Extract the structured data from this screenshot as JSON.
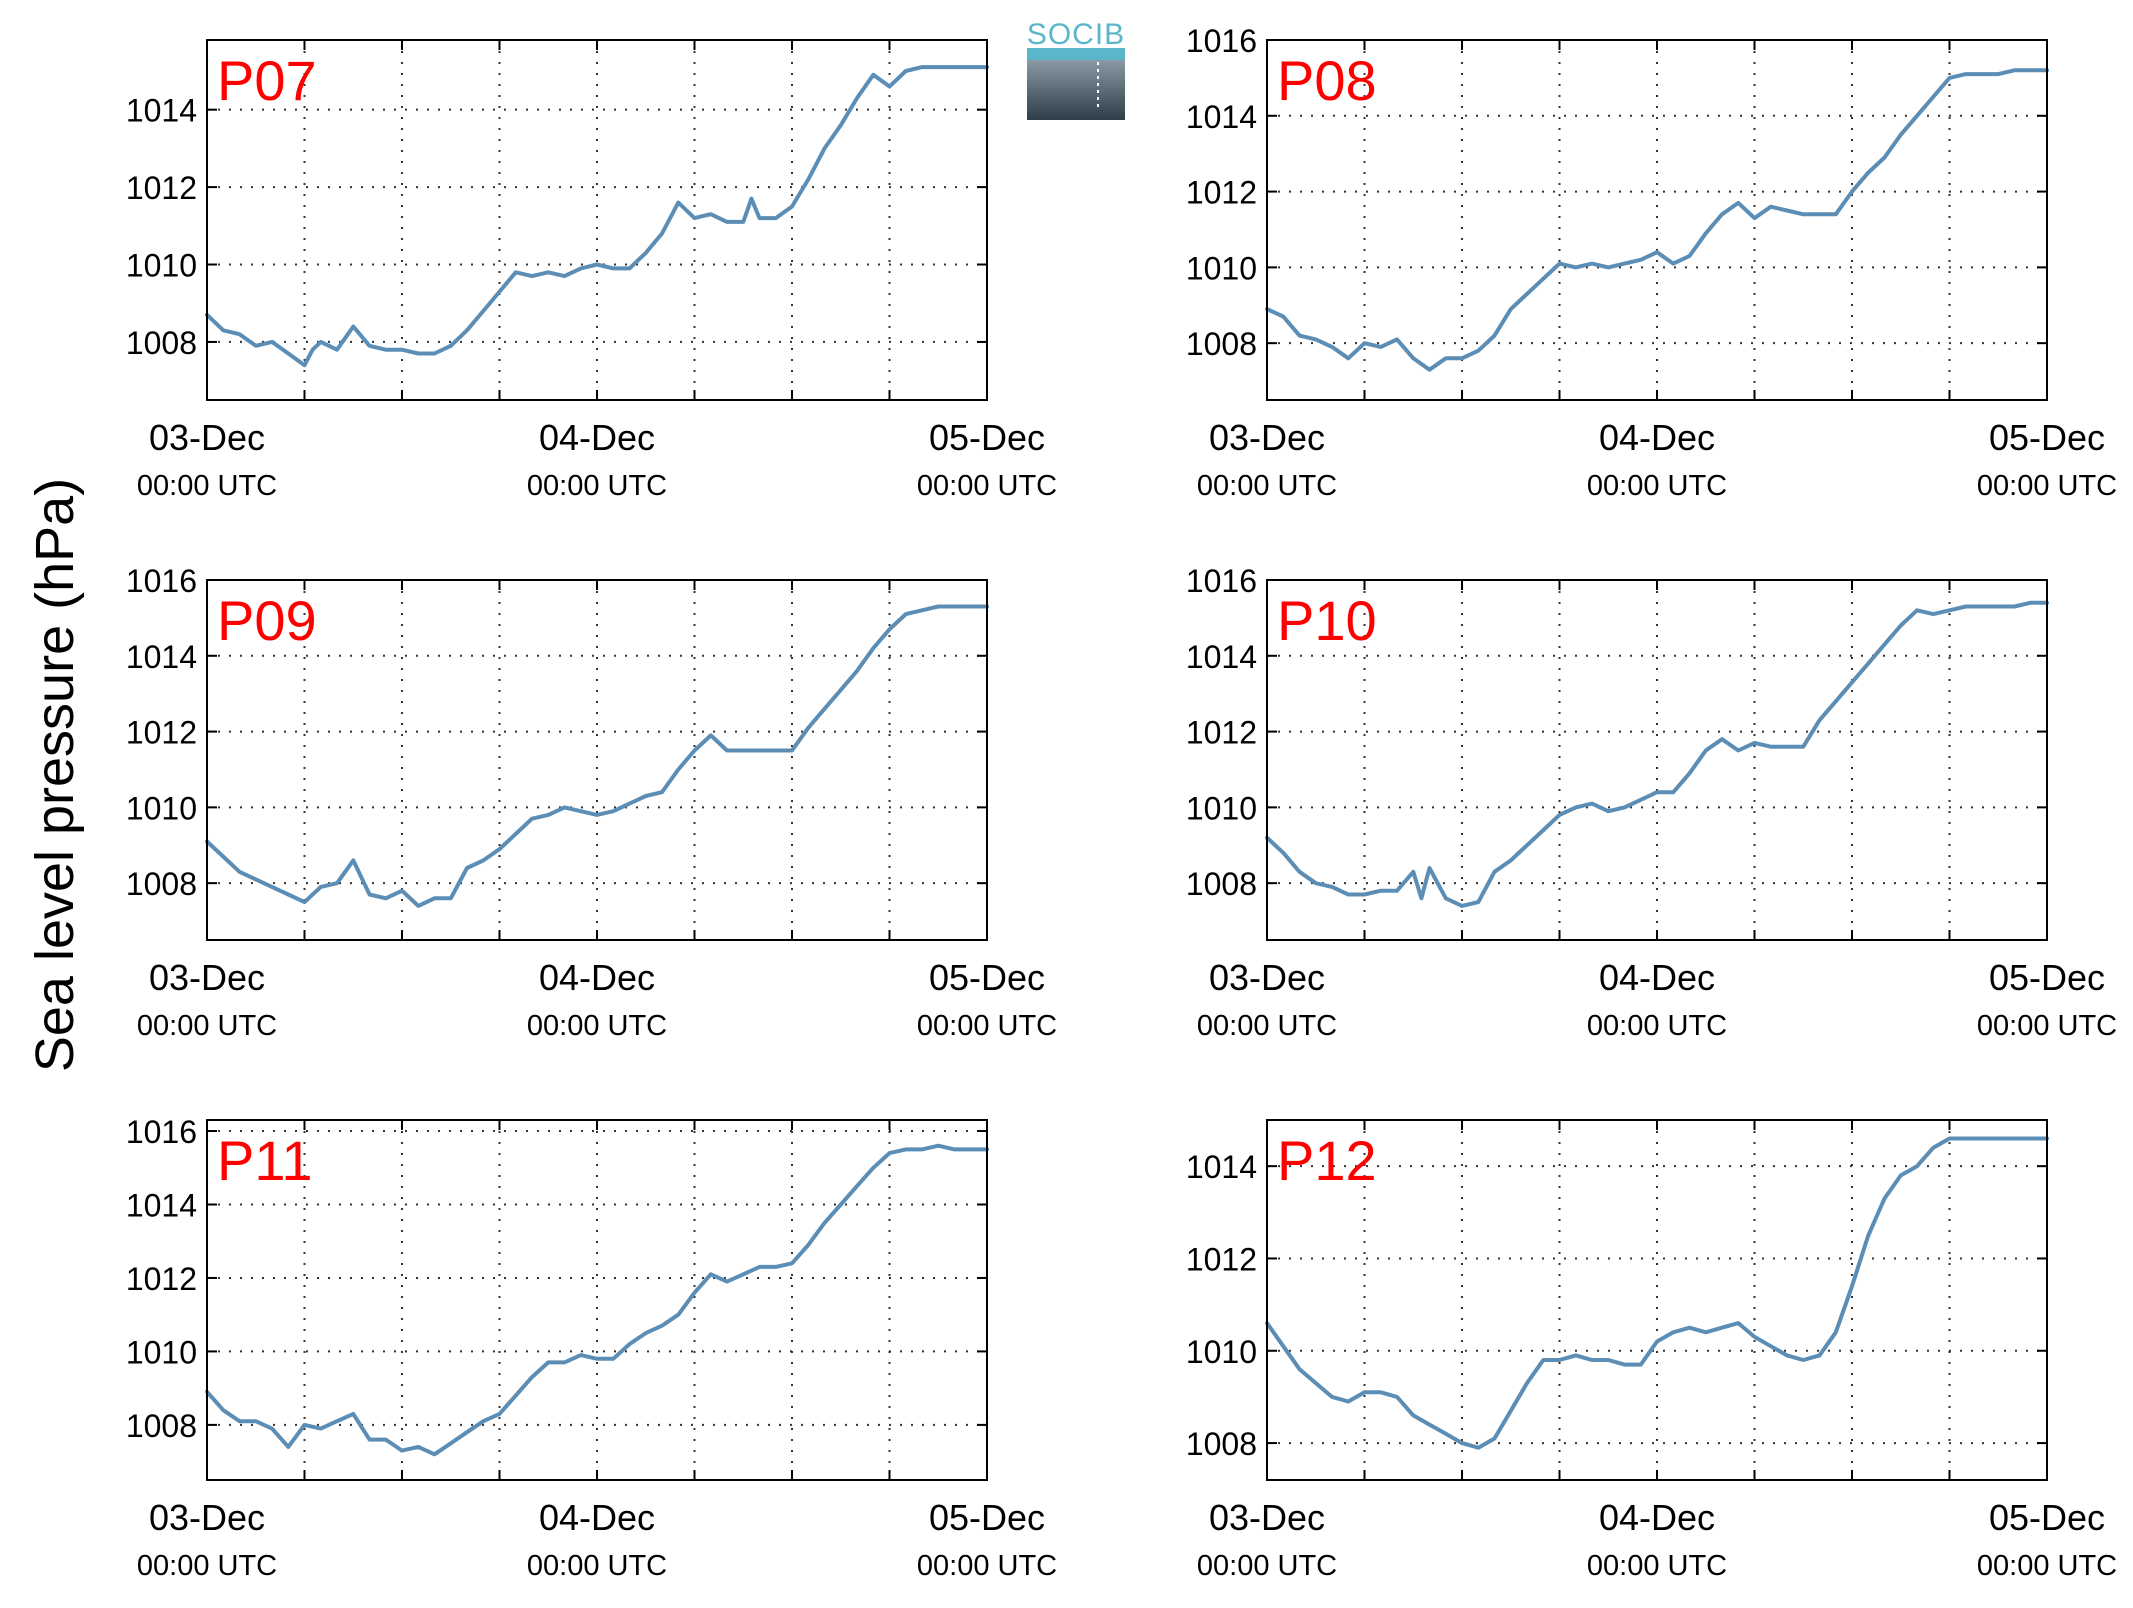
{
  "figure": {
    "ylabel": "Sea level pressure (hPa)",
    "logo": {
      "text": "SOCIB"
    },
    "colors": {
      "series": "#5b8db5",
      "panel_label": "#ff0000",
      "grid": "#333333"
    }
  },
  "chart_data": [
    {
      "type": "line",
      "title": "P07",
      "x_ticks": [
        {
          "date": "03-Dec",
          "time": "00:00 UTC"
        },
        {
          "date": "04-Dec",
          "time": "00:00 UTC"
        },
        {
          "date": "05-Dec",
          "time": "00:00 UTC"
        }
      ],
      "xlim_hours": [
        0,
        48
      ],
      "ylim": [
        1006.5,
        1015.8
      ],
      "yticks": [
        1008,
        1010,
        1012,
        1014
      ],
      "grid": true,
      "series": [
        {
          "x": [
            0,
            1,
            2,
            3,
            4,
            5,
            6,
            6.5,
            7,
            8,
            9,
            10,
            11,
            12,
            13,
            14,
            15,
            16,
            17,
            18,
            19,
            20,
            21,
            22,
            23,
            24,
            25,
            26,
            27,
            28,
            29,
            30,
            31,
            32,
            33,
            33.5,
            34,
            35,
            36,
            37,
            38,
            39,
            40,
            41,
            42,
            43,
            44,
            45,
            46,
            47,
            48
          ],
          "y": [
            1008.7,
            1008.3,
            1008.2,
            1007.9,
            1008.0,
            1007.7,
            1007.4,
            1007.8,
            1008.0,
            1007.8,
            1008.4,
            1007.9,
            1007.8,
            1007.8,
            1007.7,
            1007.7,
            1007.9,
            1008.3,
            1008.8,
            1009.3,
            1009.8,
            1009.7,
            1009.8,
            1009.7,
            1009.9,
            1010.0,
            1009.9,
            1009.9,
            1010.3,
            1010.8,
            1011.6,
            1011.2,
            1011.3,
            1011.1,
            1011.1,
            1011.7,
            1011.2,
            1011.2,
            1011.5,
            1012.2,
            1013.0,
            1013.6,
            1014.3,
            1014.9,
            1014.6,
            1015.0,
            1015.1,
            1015.1,
            1015.1,
            1015.1,
            1015.1
          ]
        }
      ]
    },
    {
      "type": "line",
      "title": "P08",
      "x_ticks": [
        {
          "date": "03-Dec",
          "time": "00:00 UTC"
        },
        {
          "date": "04-Dec",
          "time": "00:00 UTC"
        },
        {
          "date": "05-Dec",
          "time": "00:00 UTC"
        }
      ],
      "xlim_hours": [
        0,
        48
      ],
      "ylim": [
        1006.5,
        1016.0
      ],
      "yticks": [
        1008,
        1010,
        1012,
        1014,
        1016
      ],
      "grid": true,
      "series": [
        {
          "x": [
            0,
            1,
            2,
            3,
            4,
            5,
            6,
            7,
            8,
            9,
            10,
            11,
            12,
            13,
            14,
            15,
            16,
            17,
            18,
            19,
            20,
            21,
            22,
            23,
            24,
            25,
            26,
            27,
            28,
            29,
            30,
            31,
            32,
            33,
            34,
            35,
            36,
            37,
            38,
            39,
            40,
            41,
            42,
            43,
            44,
            45,
            46,
            47,
            48
          ],
          "y": [
            1008.9,
            1008.7,
            1008.2,
            1008.1,
            1007.9,
            1007.6,
            1008.0,
            1007.9,
            1008.1,
            1007.6,
            1007.3,
            1007.6,
            1007.6,
            1007.8,
            1008.2,
            1008.9,
            1009.3,
            1009.7,
            1010.1,
            1010.0,
            1010.1,
            1010.0,
            1010.1,
            1010.2,
            1010.4,
            1010.1,
            1010.3,
            1010.9,
            1011.4,
            1011.7,
            1011.3,
            1011.6,
            1011.5,
            1011.4,
            1011.4,
            1011.4,
            1012.0,
            1012.5,
            1012.9,
            1013.5,
            1014.0,
            1014.5,
            1015.0,
            1015.1,
            1015.1,
            1015.1,
            1015.2,
            1015.2,
            1015.2
          ]
        }
      ]
    },
    {
      "type": "line",
      "title": "P09",
      "x_ticks": [
        {
          "date": "03-Dec",
          "time": "00:00 UTC"
        },
        {
          "date": "04-Dec",
          "time": "00:00 UTC"
        },
        {
          "date": "05-Dec",
          "time": "00:00 UTC"
        }
      ],
      "xlim_hours": [
        0,
        48
      ],
      "ylim": [
        1006.5,
        1016.0
      ],
      "yticks": [
        1008,
        1010,
        1012,
        1014,
        1016
      ],
      "grid": true,
      "series": [
        {
          "x": [
            0,
            1,
            2,
            3,
            4,
            5,
            6,
            7,
            8,
            9,
            10,
            11,
            12,
            13,
            14,
            15,
            16,
            17,
            18,
            19,
            20,
            21,
            22,
            23,
            24,
            25,
            26,
            27,
            28,
            29,
            30,
            31,
            32,
            33,
            34,
            35,
            36,
            37,
            38,
            39,
            40,
            41,
            42,
            43,
            44,
            45,
            46,
            47,
            48
          ],
          "y": [
            1009.1,
            1008.7,
            1008.3,
            1008.1,
            1007.9,
            1007.7,
            1007.5,
            1007.9,
            1008.0,
            1008.6,
            1007.7,
            1007.6,
            1007.8,
            1007.4,
            1007.6,
            1007.6,
            1008.4,
            1008.6,
            1008.9,
            1009.3,
            1009.7,
            1009.8,
            1010.0,
            1009.9,
            1009.8,
            1009.9,
            1010.1,
            1010.3,
            1010.4,
            1011.0,
            1011.5,
            1011.9,
            1011.5,
            1011.5,
            1011.5,
            1011.5,
            1011.5,
            1012.1,
            1012.6,
            1013.1,
            1013.6,
            1014.2,
            1014.7,
            1015.1,
            1015.2,
            1015.3,
            1015.3,
            1015.3,
            1015.3
          ]
        }
      ]
    },
    {
      "type": "line",
      "title": "P10",
      "x_ticks": [
        {
          "date": "03-Dec",
          "time": "00:00 UTC"
        },
        {
          "date": "04-Dec",
          "time": "00:00 UTC"
        },
        {
          "date": "05-Dec",
          "time": "00:00 UTC"
        }
      ],
      "xlim_hours": [
        0,
        48
      ],
      "ylim": [
        1006.5,
        1016.0
      ],
      "yticks": [
        1008,
        1010,
        1012,
        1014,
        1016
      ],
      "grid": true,
      "series": [
        {
          "x": [
            0,
            1,
            2,
            3,
            4,
            5,
            6,
            7,
            8,
            9,
            9.5,
            10,
            11,
            12,
            13,
            14,
            15,
            16,
            17,
            18,
            19,
            20,
            21,
            22,
            23,
            24,
            25,
            26,
            27,
            28,
            29,
            30,
            31,
            32,
            33,
            34,
            35,
            36,
            37,
            38,
            39,
            40,
            41,
            42,
            43,
            44,
            45,
            46,
            47,
            48
          ],
          "y": [
            1009.2,
            1008.8,
            1008.3,
            1008.0,
            1007.9,
            1007.7,
            1007.7,
            1007.8,
            1007.8,
            1008.3,
            1007.6,
            1008.4,
            1007.6,
            1007.4,
            1007.5,
            1008.3,
            1008.6,
            1009.0,
            1009.4,
            1009.8,
            1010.0,
            1010.1,
            1009.9,
            1010.0,
            1010.2,
            1010.4,
            1010.4,
            1010.9,
            1011.5,
            1011.8,
            1011.5,
            1011.7,
            1011.6,
            1011.6,
            1011.6,
            1012.3,
            1012.8,
            1013.3,
            1013.8,
            1014.3,
            1014.8,
            1015.2,
            1015.1,
            1015.2,
            1015.3,
            1015.3,
            1015.3,
            1015.3,
            1015.4,
            1015.4
          ]
        }
      ]
    },
    {
      "type": "line",
      "title": "P11",
      "x_ticks": [
        {
          "date": "03-Dec",
          "time": "00:00 UTC"
        },
        {
          "date": "04-Dec",
          "time": "00:00 UTC"
        },
        {
          "date": "05-Dec",
          "time": "00:00 UTC"
        }
      ],
      "xlim_hours": [
        0,
        48
      ],
      "ylim": [
        1006.5,
        1016.3
      ],
      "yticks": [
        1008,
        1010,
        1012,
        1014,
        1016
      ],
      "grid": true,
      "series": [
        {
          "x": [
            0,
            1,
            2,
            3,
            4,
            5,
            6,
            7,
            8,
            9,
            10,
            11,
            12,
            13,
            14,
            15,
            16,
            17,
            18,
            19,
            20,
            21,
            22,
            23,
            24,
            25,
            26,
            27,
            28,
            29,
            30,
            31,
            32,
            33,
            34,
            35,
            36,
            37,
            38,
            39,
            40,
            41,
            42,
            43,
            44,
            45,
            46,
            47,
            48
          ],
          "y": [
            1008.9,
            1008.4,
            1008.1,
            1008.1,
            1007.9,
            1007.4,
            1008.0,
            1007.9,
            1008.1,
            1008.3,
            1007.6,
            1007.6,
            1007.3,
            1007.4,
            1007.2,
            1007.5,
            1007.8,
            1008.1,
            1008.3,
            1008.8,
            1009.3,
            1009.7,
            1009.7,
            1009.9,
            1009.8,
            1009.8,
            1010.2,
            1010.5,
            1010.7,
            1011.0,
            1011.6,
            1012.1,
            1011.9,
            1012.1,
            1012.3,
            1012.3,
            1012.4,
            1012.9,
            1013.5,
            1014.0,
            1014.5,
            1015.0,
            1015.4,
            1015.5,
            1015.5,
            1015.6,
            1015.5,
            1015.5,
            1015.5
          ]
        }
      ]
    },
    {
      "type": "line",
      "title": "P12",
      "x_ticks": [
        {
          "date": "03-Dec",
          "time": "00:00 UTC"
        },
        {
          "date": "04-Dec",
          "time": "00:00 UTC"
        },
        {
          "date": "05-Dec",
          "time": "00:00 UTC"
        }
      ],
      "xlim_hours": [
        0,
        48
      ],
      "ylim": [
        1007.2,
        1015.0
      ],
      "yticks": [
        1008,
        1010,
        1012,
        1014
      ],
      "grid": true,
      "series": [
        {
          "x": [
            0,
            1,
            2,
            3,
            4,
            5,
            6,
            7,
            8,
            9,
            10,
            11,
            12,
            13,
            14,
            15,
            16,
            17,
            18,
            19,
            20,
            21,
            22,
            23,
            24,
            25,
            26,
            27,
            28,
            29,
            30,
            31,
            32,
            33,
            34,
            35,
            36,
            37,
            38,
            39,
            40,
            41,
            42,
            43,
            44,
            45,
            46,
            47,
            48
          ],
          "y": [
            1010.6,
            1010.1,
            1009.6,
            1009.3,
            1009.0,
            1008.9,
            1009.1,
            1009.1,
            1009.0,
            1008.6,
            1008.4,
            1008.2,
            1008.0,
            1007.9,
            1008.1,
            1008.7,
            1009.3,
            1009.8,
            1009.8,
            1009.9,
            1009.8,
            1009.8,
            1009.7,
            1009.7,
            1010.2,
            1010.4,
            1010.5,
            1010.4,
            1010.5,
            1010.6,
            1010.3,
            1010.1,
            1009.9,
            1009.8,
            1009.9,
            1010.4,
            1011.4,
            1012.5,
            1013.3,
            1013.8,
            1014.0,
            1014.4,
            1014.6,
            1014.6,
            1014.6,
            1014.6,
            1014.6,
            1014.6,
            1014.6
          ]
        }
      ]
    }
  ]
}
